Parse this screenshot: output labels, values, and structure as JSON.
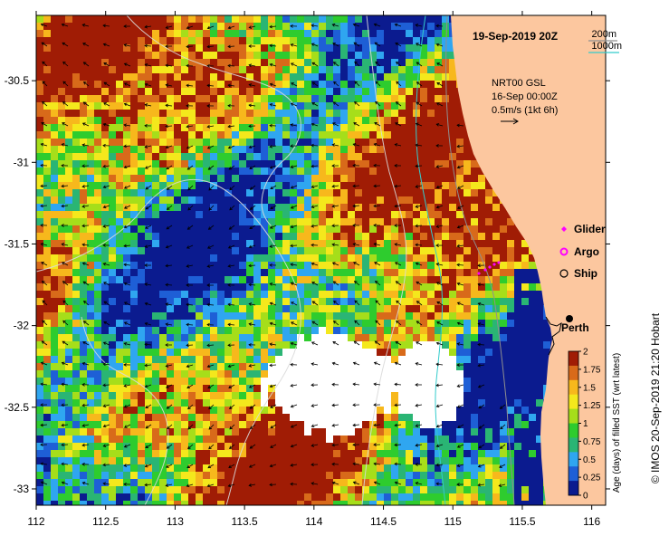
{
  "chart_data": {
    "type": "heatmap",
    "title": "19-Sep-2019 20Z",
    "product": "NRT00 GSL",
    "current_date": "16-Sep 00:00Z",
    "vector_scale_label": "0.5m/s (1kt 6h)",
    "contours": [
      {
        "label": "200m",
        "color": "#8f8f8f"
      },
      {
        "label": "1000m",
        "color": "#33cccc"
      }
    ],
    "x_axis": {
      "ticks": [
        "112",
        "112.5",
        "113",
        "113.5",
        "114",
        "114.5",
        "115",
        "115.5",
        "116"
      ],
      "range": [
        112,
        116.1
      ]
    },
    "y_axis": {
      "ticks": [
        "-30.5",
        "-31",
        "-31.5",
        "-32",
        "-32.5",
        "-33"
      ],
      "range": [
        -33.1,
        -30.1
      ]
    },
    "legend": [
      {
        "label": "Glider",
        "symbol": "diamond",
        "color": "#ff00ff"
      },
      {
        "label": "Argo",
        "symbol": "circle-ring",
        "color": "#ff00ff"
      },
      {
        "label": "Ship",
        "symbol": "circle-ring",
        "color": "#000000"
      }
    ],
    "city": {
      "label": "Perth",
      "lon": 115.86,
      "lat": -31.95
    },
    "colorbar": {
      "label": "Age (days) of filled SST (wrt latest)",
      "ticks": [
        "2",
        "1.75",
        "1.5",
        "1.25",
        "1",
        "0.75",
        "0.5",
        "0.25",
        "0"
      ],
      "range": [
        0,
        2
      ],
      "colors": [
        "#0b1b8f",
        "#1e5fd6",
        "#2fa6f0",
        "#2ab574",
        "#2ecc2e",
        "#a6de1a",
        "#f4e81c",
        "#f7b81c",
        "#d86a1a",
        "#a01c05"
      ]
    }
  },
  "credit": "© IMOS 20-Sep-2019 21:20 Hobart"
}
